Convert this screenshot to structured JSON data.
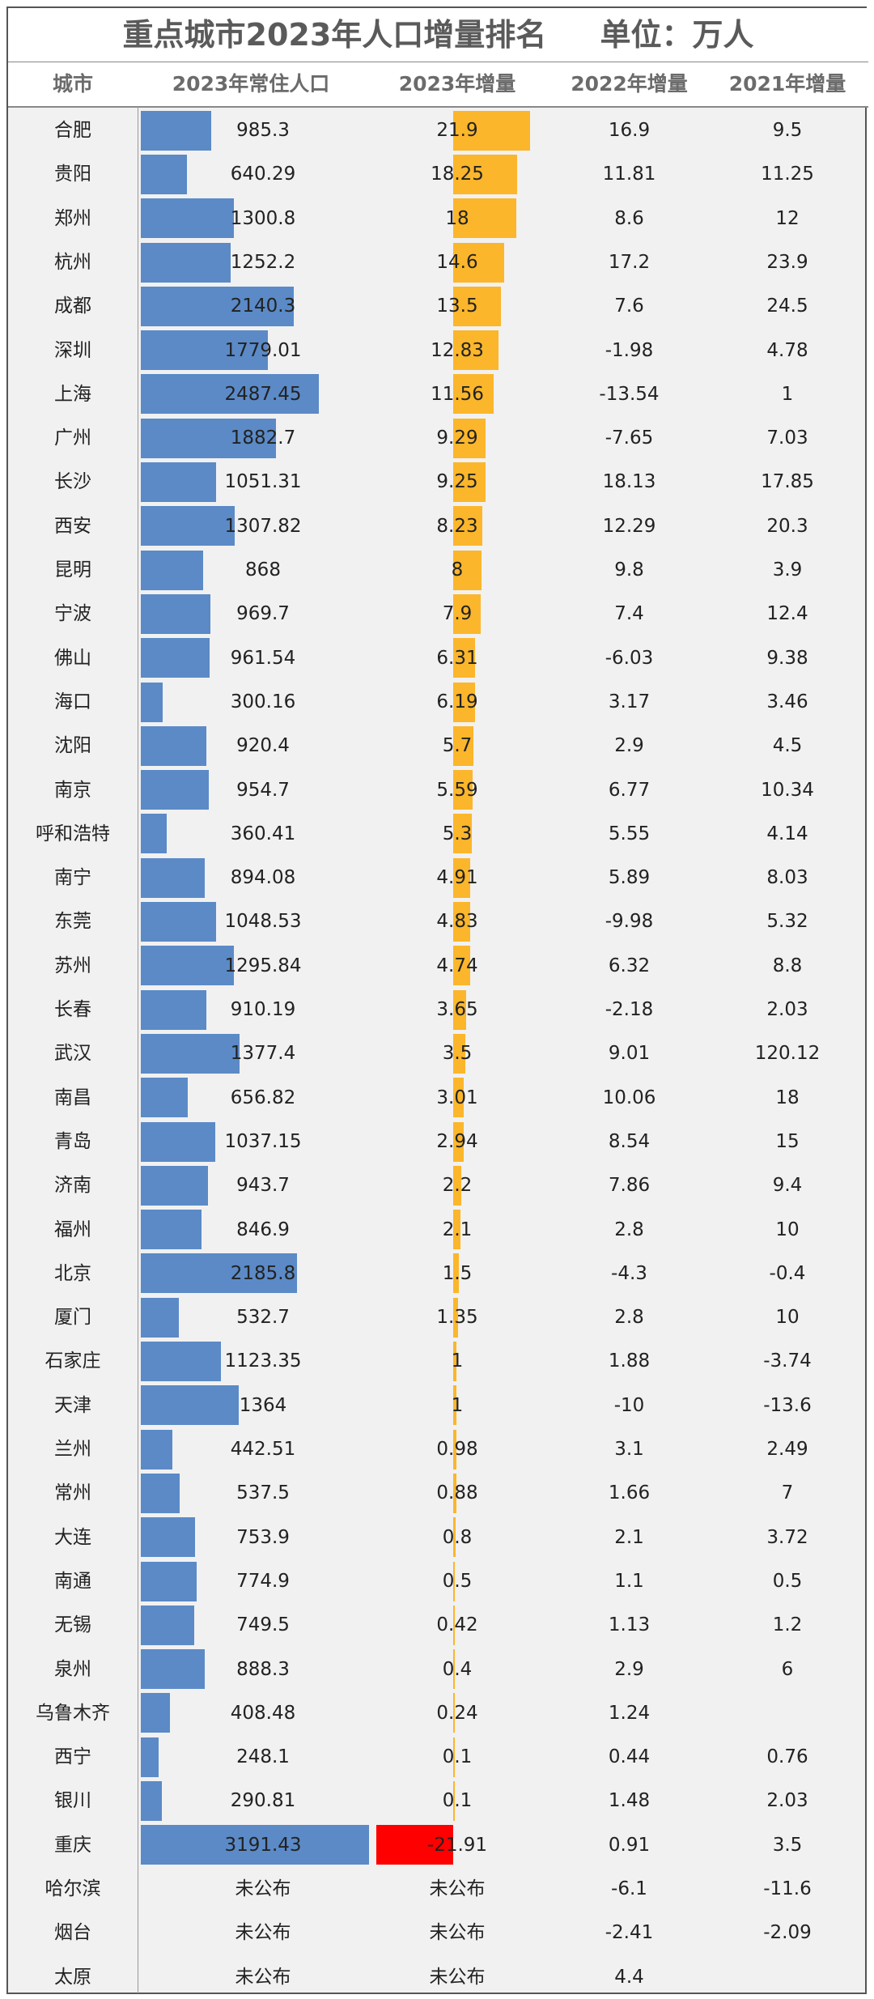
{
  "title": "重点城市2023年人口增量排名     单位：万人",
  "headers": [
    "城市",
    "2023年常住人口",
    "2023年增量",
    "2022年增量",
    "2021年增量"
  ],
  "colors": {
    "pop_bar": "#5b8ac7",
    "inc_bar": "#fbb62b",
    "neg_bar": "#ff0000"
  },
  "chart_data": {
    "type": "table",
    "columns": [
      "城市",
      "2023年常住人口",
      "2023年增量",
      "2022年增量",
      "2021年增量"
    ],
    "rows": [
      {
        "city": "合肥",
        "pop2023": "985.3",
        "inc2023": "21.9",
        "inc2022": "16.9",
        "inc2021": "9.5"
      },
      {
        "city": "贵阳",
        "pop2023": "640.29",
        "inc2023": "18.25",
        "inc2022": "11.81",
        "inc2021": "11.25"
      },
      {
        "city": "郑州",
        "pop2023": "1300.8",
        "inc2023": "18",
        "inc2022": "8.6",
        "inc2021": "12"
      },
      {
        "city": "杭州",
        "pop2023": "1252.2",
        "inc2023": "14.6",
        "inc2022": "17.2",
        "inc2021": "23.9"
      },
      {
        "city": "成都",
        "pop2023": "2140.3",
        "inc2023": "13.5",
        "inc2022": "7.6",
        "inc2021": "24.5"
      },
      {
        "city": "深圳",
        "pop2023": "1779.01",
        "inc2023": "12.83",
        "inc2022": "-1.98",
        "inc2021": "4.78"
      },
      {
        "city": "上海",
        "pop2023": "2487.45",
        "inc2023": "11.56",
        "inc2022": "-13.54",
        "inc2021": "1"
      },
      {
        "city": "广州",
        "pop2023": "1882.7",
        "inc2023": "9.29",
        "inc2022": "-7.65",
        "inc2021": "7.03"
      },
      {
        "city": "长沙",
        "pop2023": "1051.31",
        "inc2023": "9.25",
        "inc2022": "18.13",
        "inc2021": "17.85"
      },
      {
        "city": "西安",
        "pop2023": "1307.82",
        "inc2023": "8.23",
        "inc2022": "12.29",
        "inc2021": "20.3"
      },
      {
        "city": "昆明",
        "pop2023": "868",
        "inc2023": "8",
        "inc2022": "9.8",
        "inc2021": "3.9"
      },
      {
        "city": "宁波",
        "pop2023": "969.7",
        "inc2023": "7.9",
        "inc2022": "7.4",
        "inc2021": "12.4"
      },
      {
        "city": "佛山",
        "pop2023": "961.54",
        "inc2023": "6.31",
        "inc2022": "-6.03",
        "inc2021": "9.38"
      },
      {
        "city": "海口",
        "pop2023": "300.16",
        "inc2023": "6.19",
        "inc2022": "3.17",
        "inc2021": "3.46"
      },
      {
        "city": "沈阳",
        "pop2023": "920.4",
        "inc2023": "5.7",
        "inc2022": "2.9",
        "inc2021": "4.5"
      },
      {
        "city": "南京",
        "pop2023": "954.7",
        "inc2023": "5.59",
        "inc2022": "6.77",
        "inc2021": "10.34"
      },
      {
        "city": "呼和浩特",
        "pop2023": "360.41",
        "inc2023": "5.3",
        "inc2022": "5.55",
        "inc2021": "4.14"
      },
      {
        "city": "南宁",
        "pop2023": "894.08",
        "inc2023": "4.91",
        "inc2022": "5.89",
        "inc2021": "8.03"
      },
      {
        "city": "东莞",
        "pop2023": "1048.53",
        "inc2023": "4.83",
        "inc2022": "-9.98",
        "inc2021": "5.32"
      },
      {
        "city": "苏州",
        "pop2023": "1295.84",
        "inc2023": "4.74",
        "inc2022": "6.32",
        "inc2021": "8.8"
      },
      {
        "city": "长春",
        "pop2023": "910.19",
        "inc2023": "3.65",
        "inc2022": "-2.18",
        "inc2021": "2.03"
      },
      {
        "city": "武汉",
        "pop2023": "1377.4",
        "inc2023": "3.5",
        "inc2022": "9.01",
        "inc2021": "120.12"
      },
      {
        "city": "南昌",
        "pop2023": "656.82",
        "inc2023": "3.01",
        "inc2022": "10.06",
        "inc2021": "18"
      },
      {
        "city": "青岛",
        "pop2023": "1037.15",
        "inc2023": "2.94",
        "inc2022": "8.54",
        "inc2021": "15"
      },
      {
        "city": "济南",
        "pop2023": "943.7",
        "inc2023": "2.2",
        "inc2022": "7.86",
        "inc2021": "9.4"
      },
      {
        "city": "福州",
        "pop2023": "846.9",
        "inc2023": "2.1",
        "inc2022": "2.8",
        "inc2021": "10"
      },
      {
        "city": "北京",
        "pop2023": "2185.8",
        "inc2023": "1.5",
        "inc2022": "-4.3",
        "inc2021": "-0.4"
      },
      {
        "city": "厦门",
        "pop2023": "532.7",
        "inc2023": "1.35",
        "inc2022": "2.8",
        "inc2021": "10"
      },
      {
        "city": "石家庄",
        "pop2023": "1123.35",
        "inc2023": "1",
        "inc2022": "1.88",
        "inc2021": "-3.74"
      },
      {
        "city": "天津",
        "pop2023": "1364",
        "inc2023": "1",
        "inc2022": "-10",
        "inc2021": "-13.6"
      },
      {
        "city": "兰州",
        "pop2023": "442.51",
        "inc2023": "0.98",
        "inc2022": "3.1",
        "inc2021": "2.49"
      },
      {
        "city": "常州",
        "pop2023": "537.5",
        "inc2023": "0.88",
        "inc2022": "1.66",
        "inc2021": "7"
      },
      {
        "city": "大连",
        "pop2023": "753.9",
        "inc2023": "0.8",
        "inc2022": "2.1",
        "inc2021": "3.72"
      },
      {
        "city": "南通",
        "pop2023": "774.9",
        "inc2023": "0.5",
        "inc2022": "1.1",
        "inc2021": "0.5"
      },
      {
        "city": "无锡",
        "pop2023": "749.5",
        "inc2023": "0.42",
        "inc2022": "1.13",
        "inc2021": "1.2"
      },
      {
        "city": "泉州",
        "pop2023": "888.3",
        "inc2023": "0.4",
        "inc2022": "2.9",
        "inc2021": "6"
      },
      {
        "city": "乌鲁木齐",
        "pop2023": "408.48",
        "inc2023": "0.24",
        "inc2022": "1.24",
        "inc2021": ""
      },
      {
        "city": "西宁",
        "pop2023": "248.1",
        "inc2023": "0.1",
        "inc2022": "0.44",
        "inc2021": "0.76"
      },
      {
        "city": "银川",
        "pop2023": "290.81",
        "inc2023": "0.1",
        "inc2022": "1.48",
        "inc2021": "2.03"
      },
      {
        "city": "重庆",
        "pop2023": "3191.43",
        "inc2023": "-21.91",
        "inc2022": "0.91",
        "inc2021": "3.5"
      },
      {
        "city": "哈尔滨",
        "pop2023": "未公布",
        "inc2023": "未公布",
        "inc2022": "-6.1",
        "inc2021": "-11.6"
      },
      {
        "city": "烟台",
        "pop2023": "未公布",
        "inc2023": "未公布",
        "inc2022": "-2.41",
        "inc2021": "-2.09"
      },
      {
        "city": "太原",
        "pop2023": "未公布",
        "inc2023": "未公布",
        "inc2022": "4.4",
        "inc2021": ""
      }
    ]
  }
}
